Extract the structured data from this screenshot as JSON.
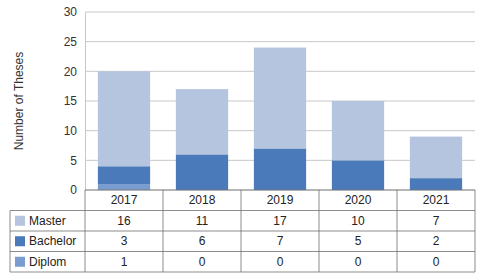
{
  "chart_data": {
    "type": "bar",
    "stacked": true,
    "grid": true,
    "y_label": "Number of Theses",
    "categories": [
      "2017",
      "2018",
      "2019",
      "2020",
      "2021"
    ],
    "ylim": [
      0,
      30
    ],
    "yticks": [
      0,
      5,
      10,
      15,
      20,
      25,
      30
    ],
    "series": [
      {
        "name": "Diplom",
        "color": "#7b9ccf",
        "values": [
          1,
          0,
          0,
          0,
          0
        ]
      },
      {
        "name": "Bachelor",
        "color": "#4a7ab9",
        "values": [
          3,
          6,
          7,
          5,
          2
        ]
      },
      {
        "name": "Master",
        "color": "#b5c4df",
        "values": [
          16,
          11,
          17,
          10,
          7
        ]
      }
    ]
  }
}
